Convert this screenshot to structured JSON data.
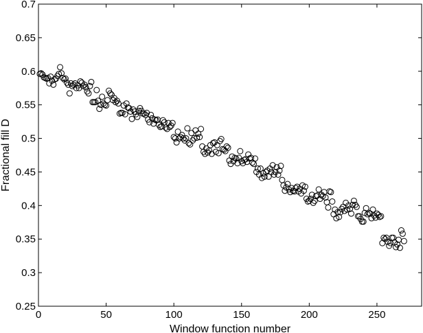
{
  "chart_data": {
    "type": "scatter",
    "xlabel": "Window function number",
    "ylabel": "Fractional fill D",
    "xlim": [
      0,
      283
    ],
    "ylim": [
      0.25,
      0.7
    ],
    "grid": false,
    "legend": "none",
    "marker": "open-circle",
    "x_ticks": [
      "0",
      "50",
      "100",
      "150",
      "200",
      "250"
    ],
    "x_tick_values": [
      0,
      50,
      100,
      150,
      200,
      250
    ],
    "y_ticks": [
      "0.25",
      "0.3",
      "0.35",
      "0.4",
      "0.45",
      "0.5",
      "0.55",
      "0.6",
      "0.65",
      "0.7"
    ],
    "y_tick_values": [
      0.25,
      0.3,
      0.35,
      0.4,
      0.45,
      0.5,
      0.55,
      0.6,
      0.65,
      0.7
    ],
    "series": [
      {
        "color": "#000000",
        "points": [
          [
            1,
            0.596
          ],
          [
            2,
            0.597
          ],
          [
            3,
            0.595
          ],
          [
            4,
            0.591
          ],
          [
            5,
            0.59
          ],
          [
            6,
            0.589
          ],
          [
            7,
            0.59
          ],
          [
            8,
            0.582
          ],
          [
            9,
            0.592
          ],
          [
            10,
            0.586
          ],
          [
            11,
            0.58
          ],
          [
            12,
            0.588
          ],
          [
            13,
            0.589
          ],
          [
            14,
            0.593
          ],
          [
            15,
            0.596
          ],
          [
            16,
            0.606
          ],
          [
            17,
            0.597
          ],
          [
            18,
            0.59
          ],
          [
            19,
            0.588
          ],
          [
            20,
            0.589
          ],
          [
            21,
            0.583
          ],
          [
            22,
            0.58
          ],
          [
            23,
            0.567
          ],
          [
            24,
            0.582
          ],
          [
            25,
            0.578
          ],
          [
            26,
            0.58
          ],
          [
            27,
            0.582
          ],
          [
            28,
            0.575
          ],
          [
            29,
            0.579
          ],
          [
            30,
            0.575
          ],
          [
            31,
            0.585
          ],
          [
            32,
            0.583
          ],
          [
            33,
            0.578
          ],
          [
            34,
            0.58
          ],
          [
            35,
            0.576
          ],
          [
            36,
            0.57
          ],
          [
            37,
            0.567
          ],
          [
            38,
            0.578
          ],
          [
            39,
            0.584
          ],
          [
            40,
            0.554
          ],
          [
            41,
            0.554
          ],
          [
            42,
            0.554
          ],
          [
            43,
            0.572
          ],
          [
            44,
            0.556
          ],
          [
            45,
            0.544
          ],
          [
            46,
            0.55
          ],
          [
            47,
            0.562
          ],
          [
            48,
            0.552
          ],
          [
            49,
            0.55
          ],
          [
            50,
            0.549
          ],
          [
            51,
            0.557
          ],
          [
            52,
            0.571
          ],
          [
            53,
            0.567
          ],
          [
            54,
            0.565
          ],
          [
            55,
            0.557
          ],
          [
            56,
            0.56
          ],
          [
            57,
            0.554
          ],
          [
            58,
            0.556
          ],
          [
            59,
            0.552
          ],
          [
            60,
            0.537
          ],
          [
            61,
            0.538
          ],
          [
            62,
            0.538
          ],
          [
            63,
            0.549
          ],
          [
            64,
            0.536
          ],
          [
            65,
            0.552
          ],
          [
            66,
            0.546
          ],
          [
            67,
            0.545
          ],
          [
            68,
            0.54
          ],
          [
            69,
            0.529
          ],
          [
            70,
            0.543
          ],
          [
            71,
            0.54
          ],
          [
            72,
            0.536
          ],
          [
            73,
            0.532
          ],
          [
            74,
            0.541
          ],
          [
            75,
            0.545
          ],
          [
            76,
            0.541
          ],
          [
            77,
            0.537
          ],
          [
            78,
            0.537
          ],
          [
            79,
            0.535
          ],
          [
            80,
            0.538
          ],
          [
            81,
            0.528
          ],
          [
            82,
            0.524
          ],
          [
            83,
            0.535
          ],
          [
            84,
            0.53
          ],
          [
            85,
            0.522
          ],
          [
            86,
            0.528
          ],
          [
            87,
            0.527
          ],
          [
            88,
            0.528
          ],
          [
            89,
            0.52
          ],
          [
            90,
            0.517
          ],
          [
            91,
            0.518
          ],
          [
            92,
            0.527
          ],
          [
            93,
            0.524
          ],
          [
            94,
            0.516
          ],
          [
            95,
            0.514
          ],
          [
            96,
            0.523
          ],
          [
            97,
            0.517
          ],
          [
            98,
            0.519
          ],
          [
            99,
            0.523
          ],
          [
            100,
            0.502
          ],
          [
            101,
            0.5
          ],
          [
            102,
            0.494
          ],
          [
            103,
            0.51
          ],
          [
            104,
            0.5
          ],
          [
            105,
            0.502
          ],
          [
            106,
            0.505
          ],
          [
            107,
            0.5
          ],
          [
            108,
            0.497
          ],
          [
            109,
            0.5
          ],
          [
            110,
            0.515
          ],
          [
            111,
            0.493
          ],
          [
            112,
            0.491
          ],
          [
            113,
            0.508
          ],
          [
            114,
            0.497
          ],
          [
            115,
            0.5
          ],
          [
            116,
            0.512
          ],
          [
            117,
            0.501
          ],
          [
            118,
            0.507
          ],
          [
            119,
            0.502
          ],
          [
            120,
            0.514
          ],
          [
            121,
            0.488
          ],
          [
            122,
            0.48
          ],
          [
            123,
            0.477
          ],
          [
            124,
            0.485
          ],
          [
            125,
            0.479
          ],
          [
            126,
            0.482
          ],
          [
            127,
            0.49
          ],
          [
            128,
            0.477
          ],
          [
            129,
            0.493
          ],
          [
            130,
            0.494
          ],
          [
            131,
            0.48
          ],
          [
            132,
            0.49
          ],
          [
            133,
            0.478
          ],
          [
            134,
            0.496
          ],
          [
            135,
            0.499
          ],
          [
            136,
            0.484
          ],
          [
            137,
            0.483
          ],
          [
            138,
            0.481
          ],
          [
            139,
            0.488
          ],
          [
            140,
            0.486
          ],
          [
            141,
            0.467
          ],
          [
            142,
            0.462
          ],
          [
            143,
            0.473
          ],
          [
            144,
            0.466
          ],
          [
            145,
            0.471
          ],
          [
            146,
            0.47
          ],
          [
            147,
            0.463
          ],
          [
            148,
            0.471
          ],
          [
            149,
            0.481
          ],
          [
            150,
            0.466
          ],
          [
            151,
            0.463
          ],
          [
            152,
            0.468
          ],
          [
            153,
            0.469
          ],
          [
            154,
            0.465
          ],
          [
            155,
            0.476
          ],
          [
            156,
            0.47
          ],
          [
            157,
            0.471
          ],
          [
            158,
            0.464
          ],
          [
            159,
            0.462
          ],
          [
            160,
            0.47
          ],
          [
            161,
            0.45
          ],
          [
            162,
            0.455
          ],
          [
            163,
            0.446
          ],
          [
            164,
            0.455
          ],
          [
            165,
            0.441
          ],
          [
            166,
            0.448
          ],
          [
            167,
            0.443
          ],
          [
            168,
            0.45
          ],
          [
            169,
            0.452
          ],
          [
            170,
            0.443
          ],
          [
            171,
            0.455
          ],
          [
            172,
            0.45
          ],
          [
            173,
            0.46
          ],
          [
            174,
            0.446
          ],
          [
            175,
            0.45
          ],
          [
            176,
            0.457
          ],
          [
            177,
            0.446
          ],
          [
            178,
            0.452
          ],
          [
            179,
            0.459
          ],
          [
            180,
            0.438
          ],
          [
            181,
            0.43
          ],
          [
            182,
            0.422
          ],
          [
            183,
            0.427
          ],
          [
            184,
            0.432
          ],
          [
            185,
            0.424
          ],
          [
            186,
            0.42
          ],
          [
            187,
            0.426
          ],
          [
            188,
            0.422
          ],
          [
            189,
            0.421
          ],
          [
            190,
            0.426
          ],
          [
            191,
            0.428
          ],
          [
            192,
            0.421
          ],
          [
            193,
            0.425
          ],
          [
            194,
            0.418
          ],
          [
            195,
            0.43
          ],
          [
            196,
            0.422
          ],
          [
            197,
            0.428
          ],
          [
            198,
            0.41
          ],
          [
            199,
            0.406
          ],
          [
            200,
            0.407
          ],
          [
            201,
            0.41
          ],
          [
            202,
            0.416
          ],
          [
            203,
            0.404
          ],
          [
            204,
            0.407
          ],
          [
            205,
            0.414
          ],
          [
            206,
            0.415
          ],
          [
            207,
            0.424
          ],
          [
            208,
            0.41
          ],
          [
            209,
            0.416
          ],
          [
            210,
            0.414
          ],
          [
            211,
            0.42
          ],
          [
            212,
            0.412
          ],
          [
            213,
            0.405
          ],
          [
            214,
            0.397
          ],
          [
            215,
            0.421
          ],
          [
            216,
            0.42
          ],
          [
            217,
            0.406
          ],
          [
            218,
            0.387
          ],
          [
            219,
            0.394
          ],
          [
            220,
            0.381
          ],
          [
            221,
            0.39
          ],
          [
            222,
            0.383
          ],
          [
            223,
            0.39
          ],
          [
            224,
            0.395
          ],
          [
            225,
            0.398
          ],
          [
            226,
            0.392
          ],
          [
            227,
            0.404
          ],
          [
            228,
            0.394
          ],
          [
            229,
            0.4
          ],
          [
            230,
            0.395
          ],
          [
            231,
            0.388
          ],
          [
            232,
            0.401
          ],
          [
            233,
            0.407
          ],
          [
            234,
            0.401
          ],
          [
            235,
            0.398
          ],
          [
            236,
            0.384
          ],
          [
            237,
            0.384
          ],
          [
            238,
            0.38
          ],
          [
            239,
            0.376
          ],
          [
            240,
            0.376
          ],
          [
            241,
            0.389
          ],
          [
            242,
            0.396
          ],
          [
            243,
            0.387
          ],
          [
            244,
            0.389
          ],
          [
            245,
            0.388
          ],
          [
            246,
            0.381
          ],
          [
            247,
            0.394
          ],
          [
            248,
            0.385
          ],
          [
            249,
            0.382
          ],
          [
            250,
            0.388
          ],
          [
            251,
            0.386
          ],
          [
            252,
            0.383
          ],
          [
            253,
            0.384
          ],
          [
            254,
            0.344
          ],
          [
            255,
            0.352
          ],
          [
            256,
            0.35
          ],
          [
            257,
            0.352
          ],
          [
            258,
            0.346
          ],
          [
            259,
            0.34
          ],
          [
            260,
            0.344
          ],
          [
            261,
            0.352
          ],
          [
            262,
            0.352
          ],
          [
            263,
            0.345
          ],
          [
            264,
            0.338
          ],
          [
            265,
            0.342
          ],
          [
            266,
            0.349
          ],
          [
            267,
            0.337
          ],
          [
            268,
            0.363
          ],
          [
            269,
            0.358
          ],
          [
            270,
            0.347
          ]
        ]
      }
    ]
  }
}
